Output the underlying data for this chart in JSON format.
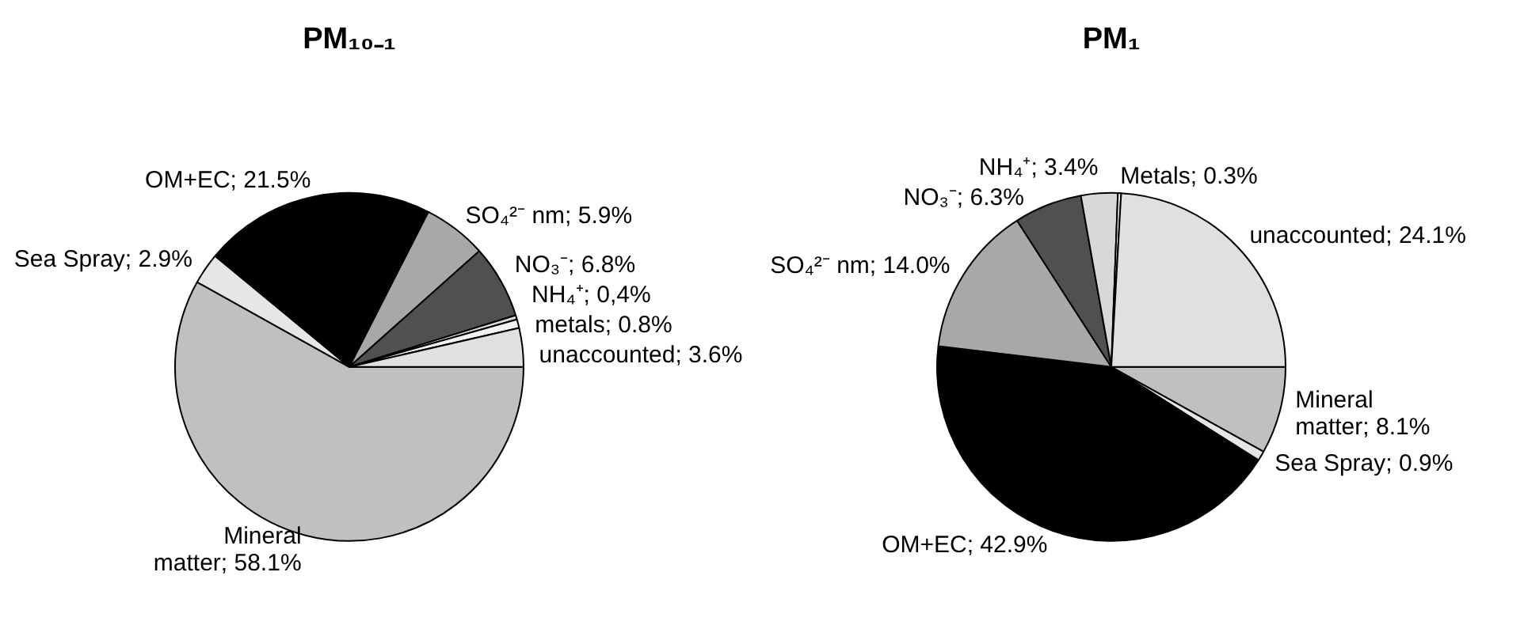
{
  "chart_data": [
    {
      "type": "pie",
      "title": "PM₁₀₋₁",
      "legend": false,
      "categories": [
        "Mineral matter",
        "Sea Spray",
        "OM+EC",
        "SO₄²⁻ nm",
        "NO₃⁻",
        "NH₄⁺",
        "metals",
        "unaccounted"
      ],
      "values": [
        58.1,
        2.9,
        21.5,
        5.9,
        6.8,
        0.4,
        0.8,
        3.6
      ],
      "value_labels": [
        "58.1%",
        "2.9%",
        "21.5%",
        "5.9%",
        "6.8%",
        "0,4%",
        "0.8%",
        "3.6%"
      ],
      "colors": [
        "#c0c0c0",
        "#e6e6e6",
        "#000000",
        "#a8a8a8",
        "#505050",
        "#d8d8d8",
        "#f2f2f2",
        "#e0e0e0"
      ]
    },
    {
      "type": "pie",
      "title": "PM₁",
      "legend": false,
      "categories": [
        "Mineral matter",
        "Sea Spray",
        "OM+EC",
        "SO₄²⁻ nm",
        "NO₃⁻",
        "NH₄⁺",
        "Metals",
        "unaccounted"
      ],
      "values": [
        8.1,
        0.9,
        42.9,
        14.0,
        6.3,
        3.4,
        0.3,
        24.1
      ],
      "value_labels": [
        "8.1%",
        "0.9%",
        "42.9%",
        "14.0%",
        "6.3%",
        "3.4%",
        "0.3%",
        "24.1%"
      ],
      "colors": [
        "#c0c0c0",
        "#e6e6e6",
        "#000000",
        "#a8a8a8",
        "#505050",
        "#d8d8d8",
        "#f2f2f2",
        "#e0e0e0"
      ]
    }
  ]
}
